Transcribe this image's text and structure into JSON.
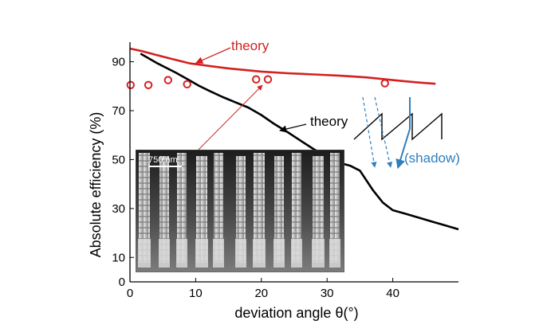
{
  "chart_data": {
    "type": "line",
    "title": "",
    "xlabel": "deviation angle θ(°)",
    "ylabel": "Absolute efficiency (%)",
    "xlim": [
      0,
      50
    ],
    "ylim": [
      0,
      98
    ],
    "xticks": [
      0,
      10,
      20,
      30,
      40
    ],
    "yticks": [
      0,
      10,
      30,
      50,
      70,
      90
    ],
    "grid": false,
    "series": [
      {
        "name": "",
        "kind": "line",
        "color": "#d42020",
        "x": [
          0,
          1.6,
          4,
          6.6,
          9,
          12,
          15,
          18,
          20,
          24,
          28,
          32,
          36,
          40,
          44,
          46.5
        ],
        "y": [
          95.4,
          94.5,
          92.8,
          91,
          89.4,
          88.3,
          87.3,
          86.5,
          86,
          85.3,
          84.8,
          84.3,
          83.6,
          82.5,
          81.5,
          81
        ]
      },
      {
        "name": "",
        "kind": "line",
        "color": "#000000",
        "x": [
          1.6,
          4,
          7,
          9,
          10.5,
          12,
          14,
          16,
          18,
          20,
          22,
          24,
          26,
          28,
          30,
          32,
          33.5,
          35,
          37,
          38.5,
          40,
          42,
          44,
          46,
          48,
          50
        ],
        "y": [
          93.3,
          89.6,
          85.5,
          82.5,
          80.2,
          78.2,
          75.7,
          73.5,
          71.3,
          68.2,
          64.5,
          61.2,
          57.7,
          54.2,
          51.5,
          48.6,
          47.5,
          45.5,
          37.4,
          32.4,
          29.3,
          27.8,
          26.2,
          24.6,
          23.1,
          21.5
        ]
      },
      {
        "name": "",
        "kind": "scatter",
        "color": "#d42020",
        "x": [
          0.1,
          2.8,
          5.8,
          8.7,
          19.2,
          21,
          38.8
        ],
        "y": [
          80.5,
          80.5,
          82.5,
          80.8,
          82.8,
          82.8,
          81.2
        ]
      }
    ],
    "annotations": {
      "theory_red": "theory",
      "theory_black": "theory",
      "shadow": "(shadow)",
      "scale_bar": "750 nm"
    }
  },
  "colors": {
    "theory_red": "#d42020",
    "shadow_blue": "#2e7fc0",
    "inset_dark": "#3a3a3a"
  }
}
